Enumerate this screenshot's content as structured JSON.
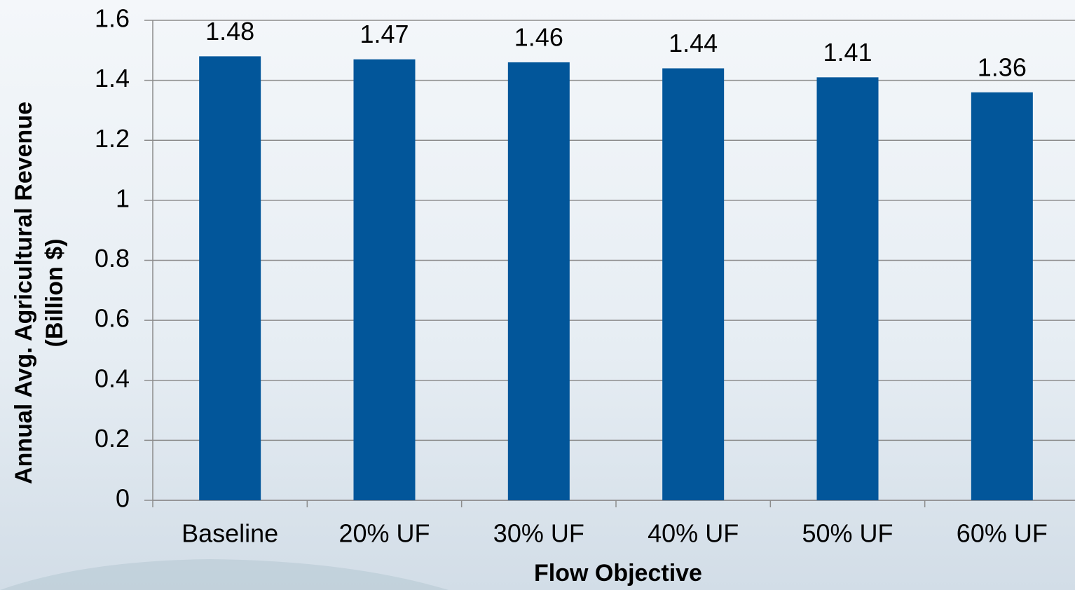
{
  "chart_data": {
    "type": "bar",
    "categories": [
      "Baseline",
      "20% UF",
      "30% UF",
      "40% UF",
      "50% UF",
      "60% UF"
    ],
    "values": [
      1.48,
      1.47,
      1.46,
      1.44,
      1.41,
      1.36
    ],
    "color": "#02569a",
    "x_label": "Flow Objective",
    "y_label": [
      "Annual Avg. Agricultural Revenue",
      "(Billion $)"
    ],
    "ylim": [
      0,
      1.6
    ],
    "yticks": [
      0,
      0.2,
      0.4,
      0.6,
      0.8,
      1,
      1.2,
      1.4,
      1.6
    ],
    "grid": true
  }
}
